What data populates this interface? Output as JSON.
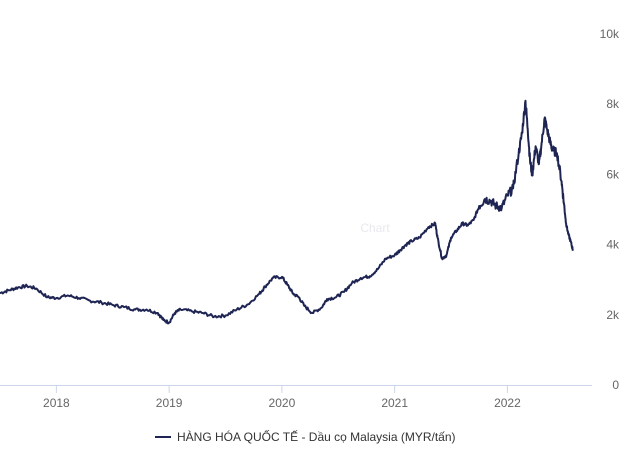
{
  "colors": {
    "series": "#1f2553",
    "axis": "#ccd6eb",
    "tick_text": "#666666",
    "watermark": "#e9e9ee"
  },
  "chart_data": {
    "type": "line",
    "title": "",
    "xlabel": "",
    "ylabel": "",
    "x_domain": [
      2017.5,
      2022.75
    ],
    "ylim": [
      0,
      10000
    ],
    "y_ticks": [
      {
        "value": 0,
        "label": "0"
      },
      {
        "value": 2000,
        "label": "2k"
      },
      {
        "value": 4000,
        "label": "4k"
      },
      {
        "value": 6000,
        "label": "6k"
      },
      {
        "value": 8000,
        "label": "8k"
      },
      {
        "value": 10000,
        "label": "10k"
      }
    ],
    "x_ticks": [
      {
        "value": 2018,
        "label": "2018"
      },
      {
        "value": 2019,
        "label": "2019"
      },
      {
        "value": 2020,
        "label": "2020"
      },
      {
        "value": 2021,
        "label": "2021"
      },
      {
        "value": 2022,
        "label": "2022"
      }
    ],
    "watermark": "Chart",
    "legend": {
      "position": "bottom-center",
      "entries": [
        "HÀNG HÓA QUỐC TẾ - Dầu cọ Malaysia (MYR/tấn)"
      ]
    },
    "series": [
      {
        "name": "HÀNG HÓA QUỐC TẾ - Dầu cọ Malaysia (MYR/tấn)",
        "color": "#1f2553",
        "x": [
          2017.5,
          2017.58,
          2017.66,
          2017.74,
          2017.82,
          2017.92,
          2018.0,
          2018.1,
          2018.2,
          2018.3,
          2018.4,
          2018.5,
          2018.6,
          2018.7,
          2018.8,
          2018.9,
          2018.95,
          2019.0,
          2019.05,
          2019.1,
          2019.2,
          2019.3,
          2019.4,
          2019.5,
          2019.6,
          2019.7,
          2019.8,
          2019.85,
          2019.92,
          2020.0,
          2020.05,
          2020.1,
          2020.15,
          2020.2,
          2020.27,
          2020.35,
          2020.4,
          2020.48,
          2020.55,
          2020.62,
          2020.7,
          2020.78,
          2020.85,
          2020.92,
          2021.0,
          2021.05,
          2021.1,
          2021.15,
          2021.22,
          2021.3,
          2021.36,
          2021.38,
          2021.42,
          2021.46,
          2021.5,
          2021.55,
          2021.6,
          2021.65,
          2021.7,
          2021.75,
          2021.8,
          2021.85,
          2021.9,
          2021.95,
          2022.0,
          2022.05,
          2022.1,
          2022.13,
          2022.16,
          2022.18,
          2022.2,
          2022.22,
          2022.25,
          2022.28,
          2022.3,
          2022.33,
          2022.35,
          2022.38,
          2022.4,
          2022.44,
          2022.48,
          2022.5,
          2022.52,
          2022.54,
          2022.56,
          2022.58
        ],
        "values": [
          2620,
          2700,
          2780,
          2820,
          2750,
          2500,
          2480,
          2550,
          2480,
          2400,
          2350,
          2280,
          2220,
          2150,
          2150,
          2050,
          1850,
          1780,
          2050,
          2150,
          2100,
          2050,
          1950,
          1980,
          2150,
          2300,
          2600,
          2800,
          3050,
          3080,
          2850,
          2600,
          2500,
          2250,
          2050,
          2200,
          2450,
          2500,
          2650,
          2900,
          3050,
          3100,
          3300,
          3600,
          3700,
          3850,
          4000,
          4100,
          4200,
          4500,
          4600,
          4200,
          3600,
          3700,
          4200,
          4400,
          4600,
          4550,
          4700,
          5100,
          5300,
          5250,
          5100,
          5050,
          5400,
          5600,
          6600,
          7200,
          8100,
          7300,
          6400,
          6000,
          6800,
          6300,
          6800,
          7600,
          7300,
          6900,
          6700,
          6600,
          5800,
          5200,
          4600,
          4300,
          4100,
          3850
        ]
      }
    ]
  }
}
